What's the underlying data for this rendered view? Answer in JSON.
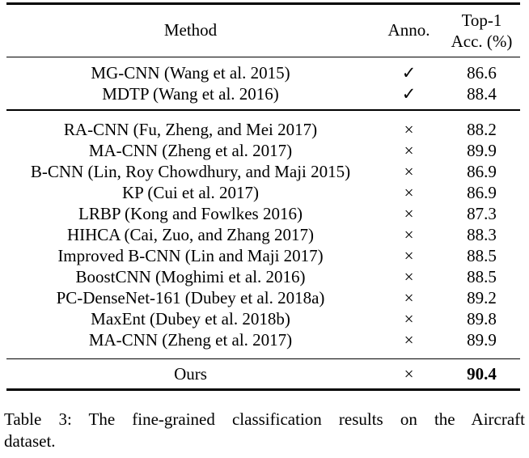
{
  "table": {
    "header": {
      "method": "Method",
      "anno": "Anno.",
      "acc_line1": "Top-1",
      "acc_line2": "Acc. (%)"
    },
    "group_annotated": {
      "rows": [
        {
          "method": "MG-CNN (Wang et al. 2015)",
          "anno": "✓",
          "acc": "86.6"
        },
        {
          "method": "MDTP (Wang et al. 2016)",
          "anno": "✓",
          "acc": "88.4"
        }
      ]
    },
    "group_unannotated": {
      "rows": [
        {
          "method": "RA-CNN (Fu, Zheng, and Mei 2017)",
          "anno": "×",
          "acc": "88.2"
        },
        {
          "method": "MA-CNN (Zheng et al. 2017)",
          "anno": "×",
          "acc": "89.9"
        },
        {
          "method": "B-CNN (Lin, Roy Chowdhury, and Maji 2015)",
          "anno": "×",
          "acc": "86.9"
        },
        {
          "method": "KP (Cui et al. 2017)",
          "anno": "×",
          "acc": "86.9"
        },
        {
          "method": "LRBP (Kong and Fowlkes 2016)",
          "anno": "×",
          "acc": "87.3"
        },
        {
          "method": "HIHCA (Cai, Zuo, and Zhang 2017)",
          "anno": "×",
          "acc": "88.3"
        },
        {
          "method": "Improved B-CNN (Lin and Maji 2017)",
          "anno": "×",
          "acc": "88.5"
        },
        {
          "method": "BoostCNN (Moghimi et al. 2016)",
          "anno": "×",
          "acc": "88.5"
        },
        {
          "method": "PC-DenseNet-161 (Dubey et al. 2018a)",
          "anno": "×",
          "acc": "89.2"
        },
        {
          "method": "MaxEnt (Dubey et al. 2018b)",
          "anno": "×",
          "acc": "89.8"
        },
        {
          "method": "MA-CNN (Zheng et al. 2017)",
          "anno": "×",
          "acc": "89.9"
        }
      ]
    },
    "ours": {
      "method": "Ours",
      "anno": "×",
      "acc": "90.4"
    }
  },
  "caption": {
    "line1": "Table 3: The fine-grained classification results on the Aircraft",
    "line2": "dataset."
  },
  "colors": {
    "text": "#000000",
    "rule": "#000000",
    "background": "#ffffff"
  }
}
